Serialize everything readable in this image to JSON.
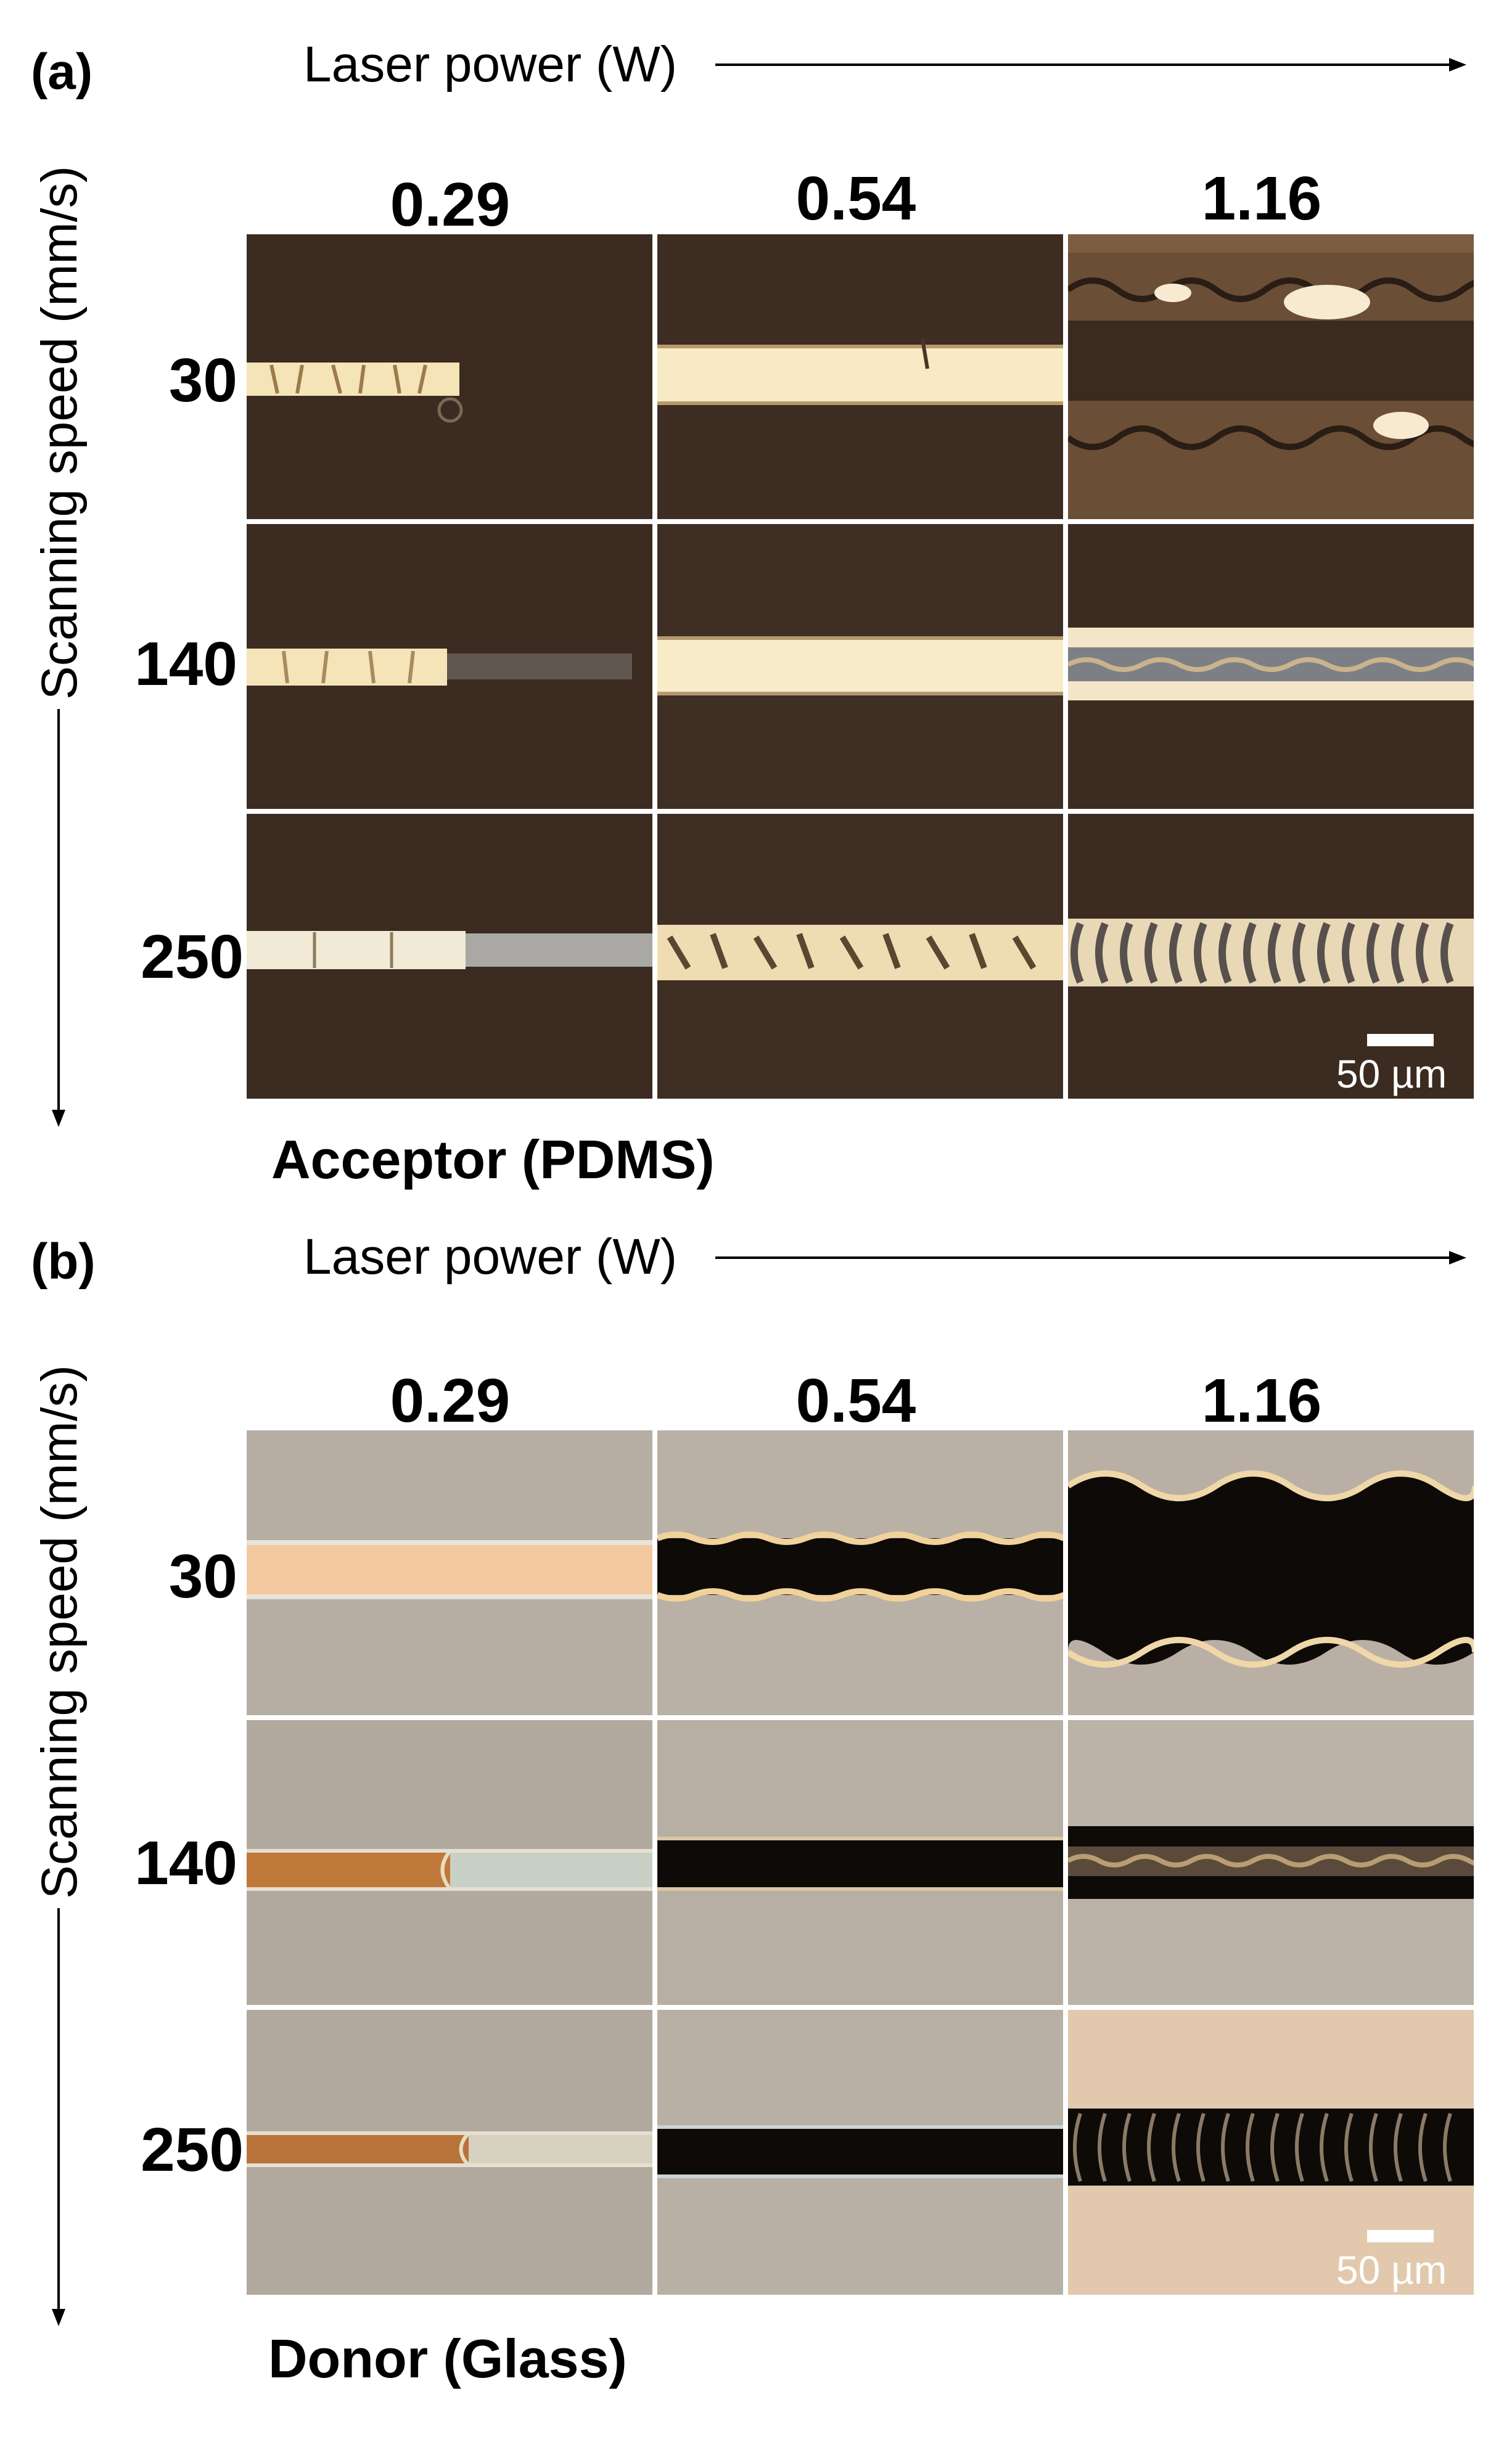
{
  "panels": [
    {
      "label": "(a)",
      "x_axis": "Laser power (W)",
      "y_axis": "Scanning speed (mm/s)",
      "columns": [
        "0.29",
        "0.54",
        "1.16"
      ],
      "rows": [
        "30",
        "140",
        "250"
      ],
      "caption": "Acceptor (PDMS)",
      "scale_bar": "50 µm"
    },
    {
      "label": "(b)",
      "x_axis": "Laser power (W)",
      "y_axis": "Scanning speed (mm/s)",
      "columns": [
        "0.29",
        "0.54",
        "1.16"
      ],
      "rows": [
        "30",
        "140",
        "250"
      ],
      "caption": "Donor (Glass)",
      "scale_bar": "50 µm"
    }
  ],
  "colors": {
    "pdms_background": "#3a2a1f",
    "pdms_line": "#f3e2b4",
    "glass_background": "#b5ab9f",
    "glass_line_gold": "#f2c98e",
    "glass_line_copper": "#c0783a",
    "ablated_dark": "#0d0a08"
  }
}
